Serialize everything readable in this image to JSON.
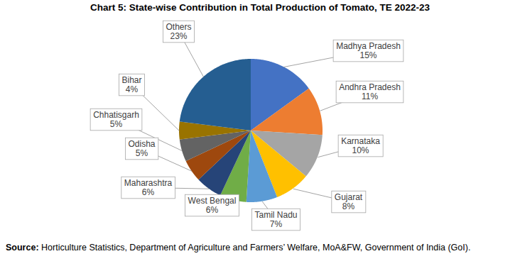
{
  "chart_data": {
    "type": "pie",
    "title": "Chart 5: State-wise Contribution in Total Production of Tomato, TE 2022-23",
    "categories": [
      "Madhya Pradesh",
      "Andhra Pradesh",
      "Karnataka",
      "Gujarat",
      "Tamil Nadu",
      "West Bengal",
      "Maharashtra",
      "Odisha",
      "Chhatisgarh",
      "Bihar",
      "Others"
    ],
    "values": [
      15,
      11,
      10,
      8,
      7,
      6,
      6,
      5,
      5,
      4,
      23
    ],
    "value_labels": [
      "15%",
      "11%",
      "10%",
      "8%",
      "7%",
      "6%",
      "6%",
      "5%",
      "5%",
      "4%",
      "23%"
    ],
    "colors": [
      "#4472C4",
      "#ED7D31",
      "#A5A5A5",
      "#FFC000",
      "#5B9BD5",
      "#70AD47",
      "#264478",
      "#9E480E",
      "#636363",
      "#997300",
      "#255E91"
    ],
    "data_labels": true,
    "source_label": "Source:",
    "source": "Horticulture Statistics, Department of Agriculture and Farmers’ Welfare, MoA&FW, Government of India (GoI)."
  }
}
